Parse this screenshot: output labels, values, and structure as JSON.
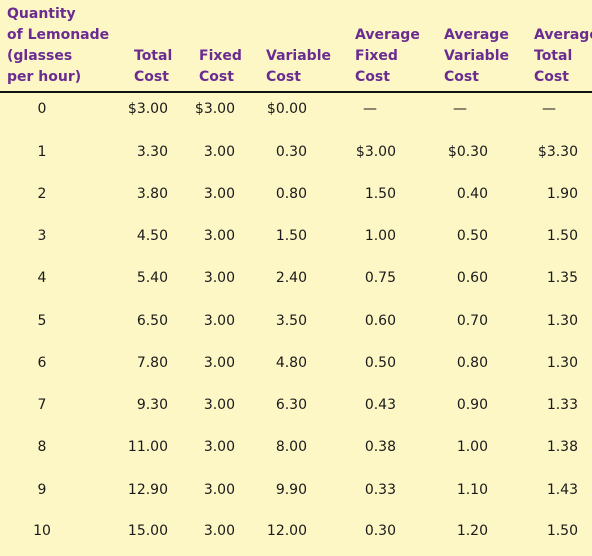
{
  "columns": [
    {
      "key": "qty",
      "label": "Quantity\nof Lemonade\n(glasses\nper hour)"
    },
    {
      "key": "tc",
      "label": "Total\nCost"
    },
    {
      "key": "fc",
      "label": "Fixed\nCost"
    },
    {
      "key": "vc",
      "label": "Variable\nCost"
    },
    {
      "key": "afc",
      "label": "Average\nFixed\nCost"
    },
    {
      "key": "avc",
      "label": "Average\nVariable\nCost"
    },
    {
      "key": "atc",
      "label": "Average\nTotal\nCost"
    }
  ],
  "rows": [
    {
      "qty": "0",
      "tc": "$3.00",
      "fc": "$3.00",
      "vc": "$0.00",
      "afc": "—",
      "avc": "—",
      "atc": "—"
    },
    {
      "qty": "1",
      "tc": "3.30",
      "fc": "3.00",
      "vc": "0.30",
      "afc": "$3.00",
      "avc": "$0.30",
      "atc": "$3.30"
    },
    {
      "qty": "2",
      "tc": "3.80",
      "fc": "3.00",
      "vc": "0.80",
      "afc": "1.50",
      "avc": "0.40",
      "atc": "1.90"
    },
    {
      "qty": "3",
      "tc": "4.50",
      "fc": "3.00",
      "vc": "1.50",
      "afc": "1.00",
      "avc": "0.50",
      "atc": "1.50"
    },
    {
      "qty": "4",
      "tc": "5.40",
      "fc": "3.00",
      "vc": "2.40",
      "afc": "0.75",
      "avc": "0.60",
      "atc": "1.35"
    },
    {
      "qty": "5",
      "tc": "6.50",
      "fc": "3.00",
      "vc": "3.50",
      "afc": "0.60",
      "avc": "0.70",
      "atc": "1.30"
    },
    {
      "qty": "6",
      "tc": "7.80",
      "fc": "3.00",
      "vc": "4.80",
      "afc": "0.50",
      "avc": "0.80",
      "atc": "1.30"
    },
    {
      "qty": "7",
      "tc": "9.30",
      "fc": "3.00",
      "vc": "6.30",
      "afc": "0.43",
      "avc": "0.90",
      "atc": "1.33"
    },
    {
      "qty": "8",
      "tc": "11.00",
      "fc": "3.00",
      "vc": "8.00",
      "afc": "0.38",
      "avc": "1.00",
      "atc": "1.38"
    },
    {
      "qty": "9",
      "tc": "12.90",
      "fc": "3.00",
      "vc": "9.90",
      "afc": "0.33",
      "avc": "1.10",
      "atc": "1.43"
    },
    {
      "qty": "10",
      "tc": "15.00",
      "fc": "3.00",
      "vc": "12.00",
      "afc": "0.30",
      "avc": "1.20",
      "atc": "1.50"
    }
  ],
  "colors": {
    "background": "#fdf7c6",
    "header_text": "#6a2c91",
    "body_text": "#1a1a1a",
    "rule": "#111111"
  }
}
